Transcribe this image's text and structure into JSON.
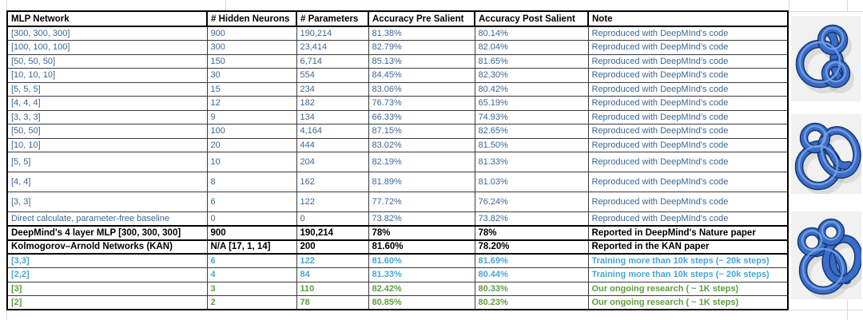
{
  "colors": {
    "steel_blue_text": "#3A6795",
    "cyan_text": "#45A7DB",
    "green_text": "#5C9E3C",
    "black_text": "#000000",
    "cell_border": "#3A3A3A",
    "knot_tube_blue": "#3A6CC8",
    "knot_background": "#F1F1F1",
    "faint_gridline": "#D9D9D9"
  },
  "table": {
    "header": [
      "MLP Network",
      "# Hidden Neurons",
      "# Parameters",
      "Accuracy Pre Salient",
      "Accuracy Post Salient",
      "Note"
    ],
    "rows": [
      {
        "style": "steel",
        "tall": false,
        "emphasis": false,
        "cells": [
          "[300, 300, 300]",
          "900",
          "190,214",
          "81.38%",
          "80.14%",
          "Reproduced with DeepMInd's code"
        ]
      },
      {
        "style": "steel",
        "tall": false,
        "emphasis": false,
        "cells": [
          "[100, 100, 100]",
          "300",
          "23,414",
          "82.79%",
          "82.04%",
          "Reproduced with DeepMInd's code"
        ]
      },
      {
        "style": "steel",
        "tall": false,
        "emphasis": false,
        "cells": [
          "[50, 50, 50]",
          "150",
          "6,714",
          "85.13%",
          "81.65%",
          "Reproduced with DeepMInd's code"
        ]
      },
      {
        "style": "steel",
        "tall": false,
        "emphasis": false,
        "cells": [
          "[10, 10, 10]",
          "30",
          "554",
          "84.45%",
          "82.30%",
          "Reproduced with DeepMInd's code"
        ]
      },
      {
        "style": "steel",
        "tall": false,
        "emphasis": false,
        "cells": [
          "[5, 5, 5]",
          "15",
          "234",
          "83.06%",
          "80.42%",
          "Reproduced with DeepMInd's code"
        ]
      },
      {
        "style": "steel",
        "tall": false,
        "emphasis": false,
        "cells": [
          "[4, 4, 4]",
          "12",
          "182",
          "76.73%",
          "65.19%",
          "Reproduced with DeepMInd's code"
        ]
      },
      {
        "style": "steel",
        "tall": false,
        "emphasis": false,
        "cells": [
          "[3, 3, 3]",
          "9",
          "134",
          "66.33%",
          "74.93%",
          "Reproduced with DeepMInd's code"
        ]
      },
      {
        "style": "steel",
        "tall": false,
        "emphasis": false,
        "cells": [
          "[50, 50]",
          "100",
          "4,164",
          "87.15%",
          "82.65%",
          "Reproduced with DeepMInd's code"
        ]
      },
      {
        "style": "steel",
        "tall": false,
        "emphasis": false,
        "cells": [
          "[10, 10]",
          "20",
          "444",
          "83.02%",
          "81.50%",
          "Reproduced with DeepMInd's code"
        ]
      },
      {
        "style": "steel",
        "tall": true,
        "emphasis": false,
        "cells": [
          "[5, 5]",
          "10",
          "204",
          "82.19%",
          "81.33%",
          "Reproduced with DeepMInd's code"
        ]
      },
      {
        "style": "steel",
        "tall": true,
        "emphasis": false,
        "cells": [
          "[4, 4]",
          "8",
          "162",
          "81.89%",
          "81.03%",
          "Reproduced with DeepMInd's code"
        ]
      },
      {
        "style": "steel",
        "tall": true,
        "emphasis": false,
        "cells": [
          "[3, 3]",
          "6",
          "122",
          "77.72%",
          "76.24%",
          "Reproduced with DeepMInd's code"
        ]
      },
      {
        "style": "steel",
        "tall": false,
        "emphasis": false,
        "cells": [
          "Direct calculate, parameter-free baseline",
          "0",
          "0",
          "73.82%",
          "73.82%",
          "Reproduced with DeepMInd's code"
        ]
      },
      {
        "style": "black",
        "tall": false,
        "emphasis": true,
        "cells": [
          "DeepMind's 4 layer MLP [300, 300, 300]",
          "900",
          "190,214",
          "78%",
          "78%",
          "Reported in DeepMind's Nature paper"
        ]
      },
      {
        "style": "black",
        "tall": false,
        "emphasis": true,
        "cells": [
          "Kolmogorov–Arnold Networks (KAN)",
          "N/A [17, 1, 14]",
          "200",
          "81.60%",
          "78.20%",
          "Reported in the KAN paper"
        ]
      },
      {
        "style": "cyan",
        "tall": false,
        "emphasis": false,
        "cells": [
          "[3,3]",
          "6",
          "122",
          "81.60%",
          "81.69%",
          "Training more than 10k steps (~ 20k steps)"
        ]
      },
      {
        "style": "cyan",
        "tall": false,
        "emphasis": false,
        "cells": [
          "[2,2]",
          "4",
          "84",
          "81.33%",
          "80.44%",
          "Training more than 10k steps (~ 20k steps)"
        ]
      },
      {
        "style": "green",
        "tall": false,
        "emphasis": false,
        "cells": [
          "[3]",
          "3",
          "110",
          "82.42%",
          "80.33%",
          "Our ongoing research ( ~ 1K steps)"
        ]
      },
      {
        "style": "green",
        "tall": false,
        "emphasis": false,
        "cells": [
          "[2]",
          "2",
          "78",
          "80.85%",
          "80.23%",
          "Our ongoing research ( ~ 1K steps)"
        ]
      }
    ]
  },
  "knots": {
    "items": [
      {
        "label": "blue-knot-render-top"
      },
      {
        "label": "blue-knot-render-middle"
      },
      {
        "label": "blue-knot-render-bottom"
      }
    ]
  }
}
